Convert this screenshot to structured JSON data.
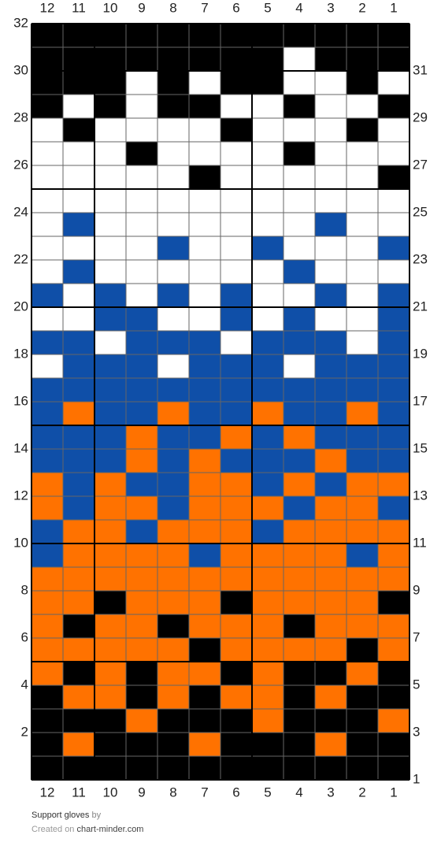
{
  "pattern": {
    "colors": {
      "K": "#000000",
      "W": "#ffffff",
      "B": "#0f4fa8",
      "O": "#ff7200"
    },
    "columns": [
      12,
      11,
      10,
      9,
      8,
      7,
      6,
      5,
      4,
      3,
      2,
      1
    ],
    "rows": [
      {
        "number": 32,
        "cells": "KKKKKKKKKKKK"
      },
      {
        "number": 31,
        "cells": "KKKKKKKKWKKK"
      },
      {
        "number": 30,
        "cells": "KKKWKWKKWWKW"
      },
      {
        "number": 29,
        "cells": "KWKWKKWWKWWK"
      },
      {
        "number": 28,
        "cells": "WKWWWWKWWWKW"
      },
      {
        "number": 27,
        "cells": "WWWKWWWWKWWW"
      },
      {
        "number": 26,
        "cells": "WWWWWKWWWWWK"
      },
      {
        "number": 25,
        "cells": "WWWWWWWWWWWW"
      },
      {
        "number": 24,
        "cells": "WBWWWWWWWBWW"
      },
      {
        "number": 23,
        "cells": "WWWWBWWBWWWB"
      },
      {
        "number": 22,
        "cells": "WBWWWWWWBWWW"
      },
      {
        "number": 21,
        "cells": "BWBWBWBWWBWB"
      },
      {
        "number": 20,
        "cells": "WWBBWWBWBWWB"
      },
      {
        "number": 19,
        "cells": "BBWBBBWBBBWB"
      },
      {
        "number": 18,
        "cells": "WBBBWBBBWBBB"
      },
      {
        "number": 17,
        "cells": "BBBBBBBBBBBB"
      },
      {
        "number": 16,
        "cells": "BOBBOBBOBBOB"
      },
      {
        "number": 15,
        "cells": "BBBOBBOBOBBB"
      },
      {
        "number": 14,
        "cells": "BBBOBOBBBOBB"
      },
      {
        "number": 13,
        "cells": "OBOBBOOBOBOO"
      },
      {
        "number": 12,
        "cells": "OBOOBOOOBOOB"
      },
      {
        "number": 11,
        "cells": "BOOBOOOBOOOO"
      },
      {
        "number": 10,
        "cells": "BOOOOBOOOOBO"
      },
      {
        "number": 9,
        "cells": "OOOOOOOOOOOO"
      },
      {
        "number": 8,
        "cells": "OOKOOOKOOOOK"
      },
      {
        "number": 7,
        "cells": "OKOOKOOOKOOO"
      },
      {
        "number": 6,
        "cells": "OOOOOKOOOOKO"
      },
      {
        "number": 5,
        "cells": "OKOKOOKOKKOK"
      },
      {
        "number": 4,
        "cells": "KOOKOKOOKOKK"
      },
      {
        "number": 3,
        "cells": "KKKOKKKOKKKO"
      },
      {
        "number": 2,
        "cells": "KOKKKOKKKOKK"
      },
      {
        "number": 1,
        "cells": "KKKKKKKKKKKK"
      }
    ]
  },
  "footer": {
    "name": "Support gloves",
    "by": "by",
    "created": "Created on",
    "site": "chart-minder.com"
  }
}
